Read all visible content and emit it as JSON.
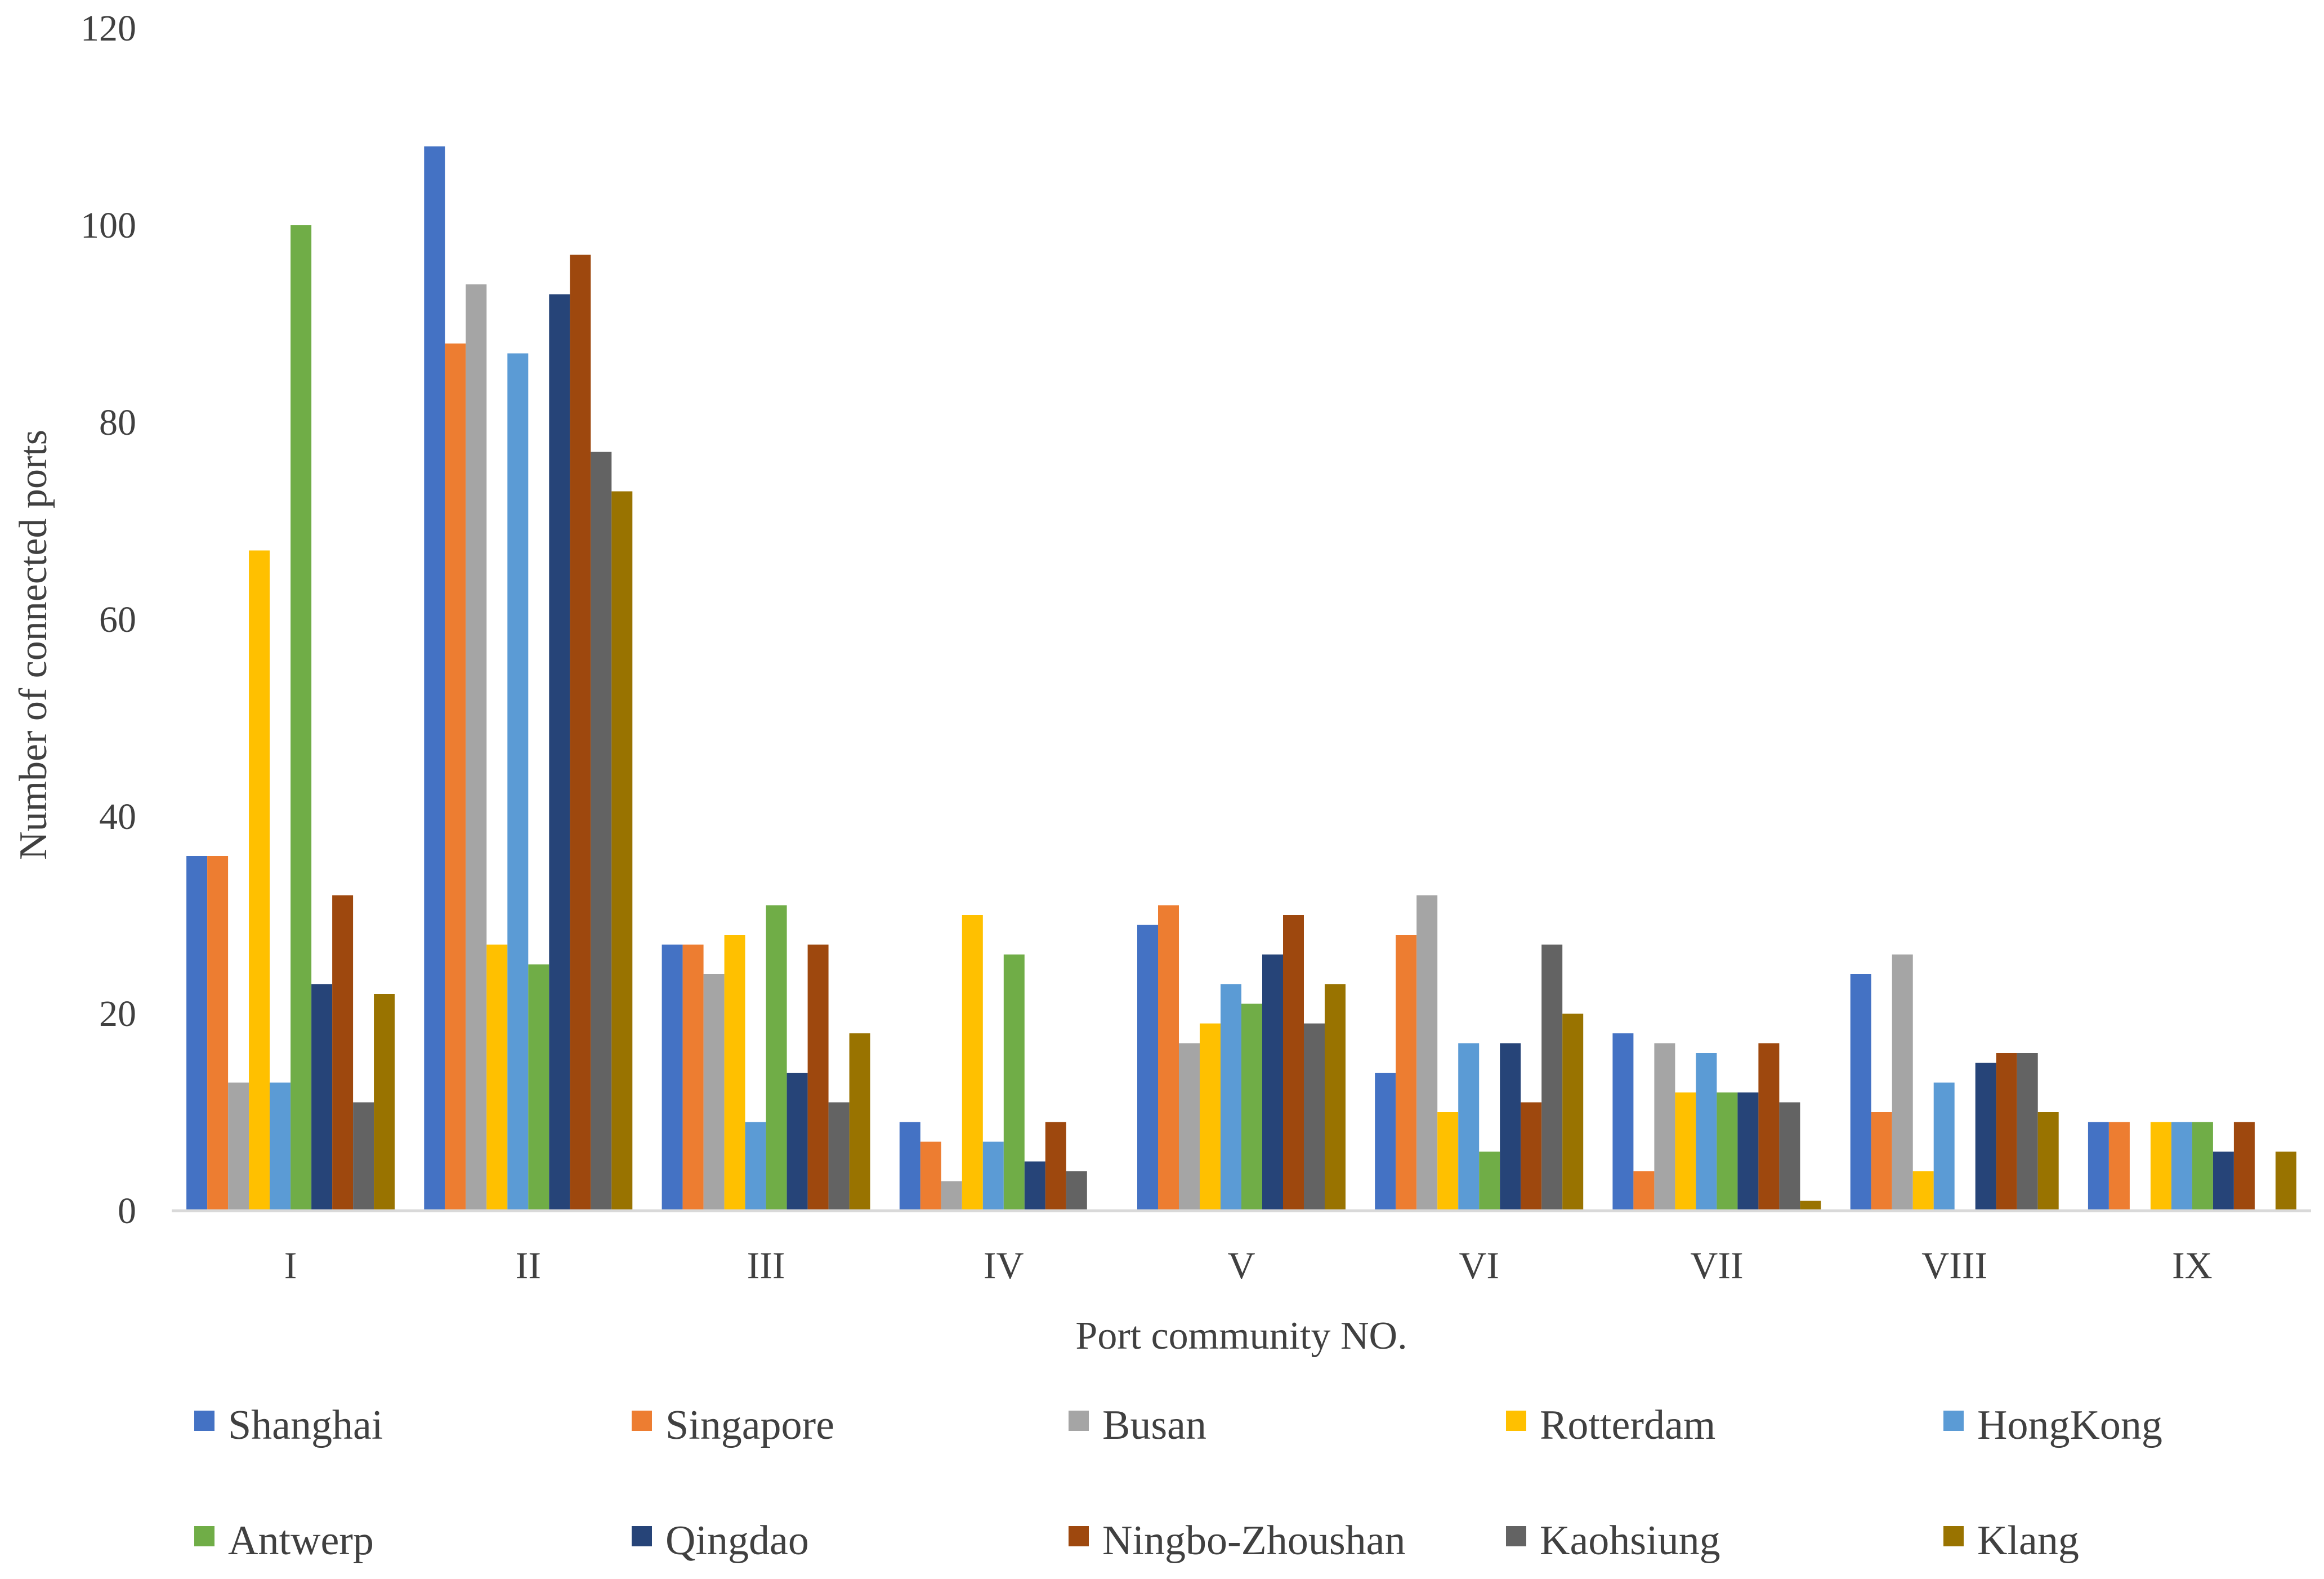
{
  "chart_data": {
    "type": "bar",
    "title": "",
    "xlabel": "Port community NO.",
    "ylabel": "Number of connected ports",
    "ylim": [
      0,
      120
    ],
    "yticks": [
      0,
      20,
      40,
      60,
      80,
      100,
      120
    ],
    "grid": false,
    "legend_position": "bottom",
    "categories": [
      "I",
      "II",
      "III",
      "IV",
      "V",
      "VI",
      "VII",
      "VIII",
      "IX"
    ],
    "series": [
      {
        "name": "Shanghai",
        "color": "#4472C4",
        "values": [
          36,
          108,
          27,
          9,
          29,
          14,
          18,
          24,
          9
        ]
      },
      {
        "name": "Singapore",
        "color": "#ED7D31",
        "values": [
          36,
          88,
          27,
          7,
          31,
          28,
          4,
          10,
          9
        ]
      },
      {
        "name": "Busan",
        "color": "#A5A5A5",
        "values": [
          13,
          94,
          24,
          3,
          17,
          32,
          17,
          26,
          0
        ]
      },
      {
        "name": "Rotterdam",
        "color": "#FFC000",
        "values": [
          67,
          27,
          28,
          30,
          19,
          10,
          12,
          4,
          9
        ]
      },
      {
        "name": "HongKong",
        "color": "#5B9BD5",
        "values": [
          13,
          87,
          9,
          7,
          23,
          17,
          16,
          13,
          9
        ]
      },
      {
        "name": "Antwerp",
        "color": "#70AD47",
        "values": [
          100,
          25,
          31,
          26,
          21,
          6,
          12,
          0,
          9
        ]
      },
      {
        "name": "Qingdao",
        "color": "#264478",
        "values": [
          23,
          93,
          14,
          5,
          26,
          17,
          12,
          15,
          6
        ]
      },
      {
        "name": "Ningbo-Zhoushan",
        "color": "#9E480E",
        "values": [
          32,
          97,
          27,
          9,
          30,
          11,
          17,
          16,
          9
        ]
      },
      {
        "name": "Kaohsiung",
        "color": "#636363",
        "values": [
          11,
          77,
          11,
          4,
          19,
          27,
          11,
          16,
          0
        ]
      },
      {
        "name": "Klang",
        "color": "#997300",
        "values": [
          22,
          73,
          18,
          0,
          23,
          20,
          1,
          10,
          6
        ]
      }
    ]
  }
}
